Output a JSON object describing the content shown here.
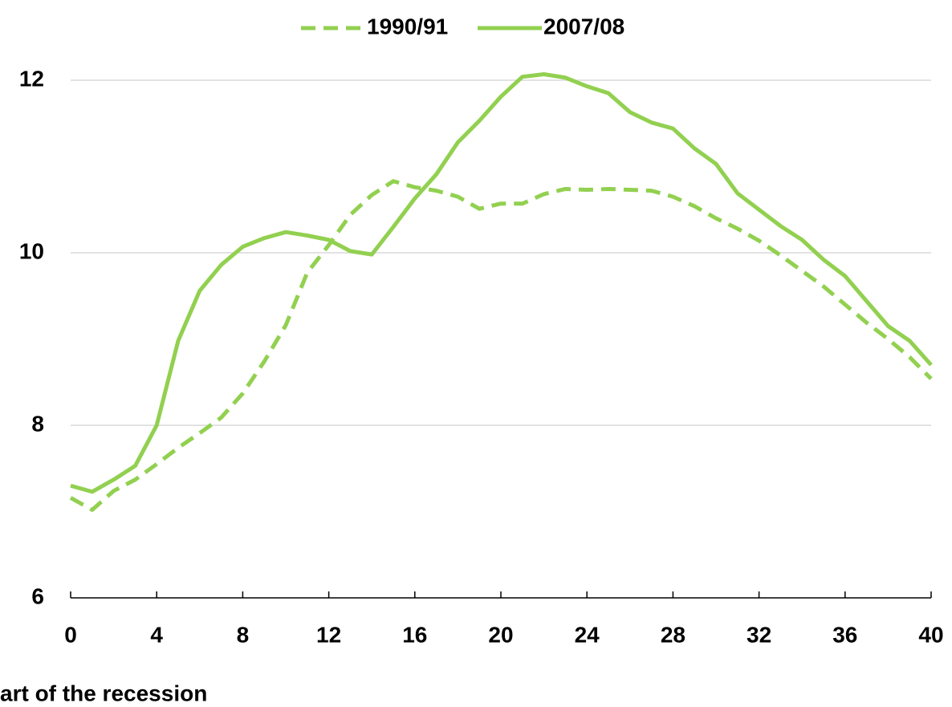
{
  "chart_data": {
    "type": "line",
    "x_label": "art of the recession",
    "x": [
      0,
      1,
      2,
      3,
      4,
      5,
      6,
      7,
      8,
      9,
      10,
      11,
      12,
      13,
      14,
      15,
      16,
      17,
      18,
      19,
      20,
      21,
      22,
      23,
      24,
      25,
      26,
      27,
      28,
      29,
      30,
      31,
      32,
      33,
      34,
      35,
      36,
      37,
      38,
      39,
      40
    ],
    "series": [
      {
        "name": "1990/91",
        "color": "#92d050",
        "dash": true,
        "values": [
          7.16,
          7.02,
          7.24,
          7.37,
          7.55,
          7.74,
          7.91,
          8.09,
          8.37,
          8.74,
          9.16,
          9.77,
          10.09,
          10.44,
          10.67,
          10.83,
          10.76,
          10.72,
          10.65,
          10.51,
          10.57,
          10.57,
          10.68,
          10.74,
          10.73,
          10.74,
          10.73,
          10.72,
          10.65,
          10.54,
          10.4,
          10.28,
          10.14,
          9.97,
          9.79,
          9.61,
          9.4,
          9.19,
          9.0,
          8.79,
          8.54
        ]
      },
      {
        "name": "2007/08",
        "color": "#92d050",
        "dash": false,
        "values": [
          7.3,
          7.23,
          7.37,
          7.53,
          8.0,
          8.98,
          9.56,
          9.86,
          10.07,
          10.17,
          10.24,
          10.2,
          10.15,
          10.02,
          9.98,
          10.3,
          10.63,
          10.91,
          11.28,
          11.53,
          11.81,
          12.04,
          12.07,
          12.03,
          11.93,
          11.85,
          11.63,
          11.51,
          11.44,
          11.21,
          11.03,
          10.69,
          10.5,
          10.31,
          10.15,
          9.92,
          9.73,
          9.44,
          9.15,
          8.98,
          8.7
        ]
      }
    ],
    "xlim": [
      0,
      40
    ],
    "xticks": [
      0,
      4,
      8,
      12,
      16,
      20,
      24,
      28,
      32,
      36,
      40
    ],
    "ylim": [
      6,
      12
    ],
    "yticks": [
      6,
      8,
      10,
      12
    ],
    "grid": true
  }
}
